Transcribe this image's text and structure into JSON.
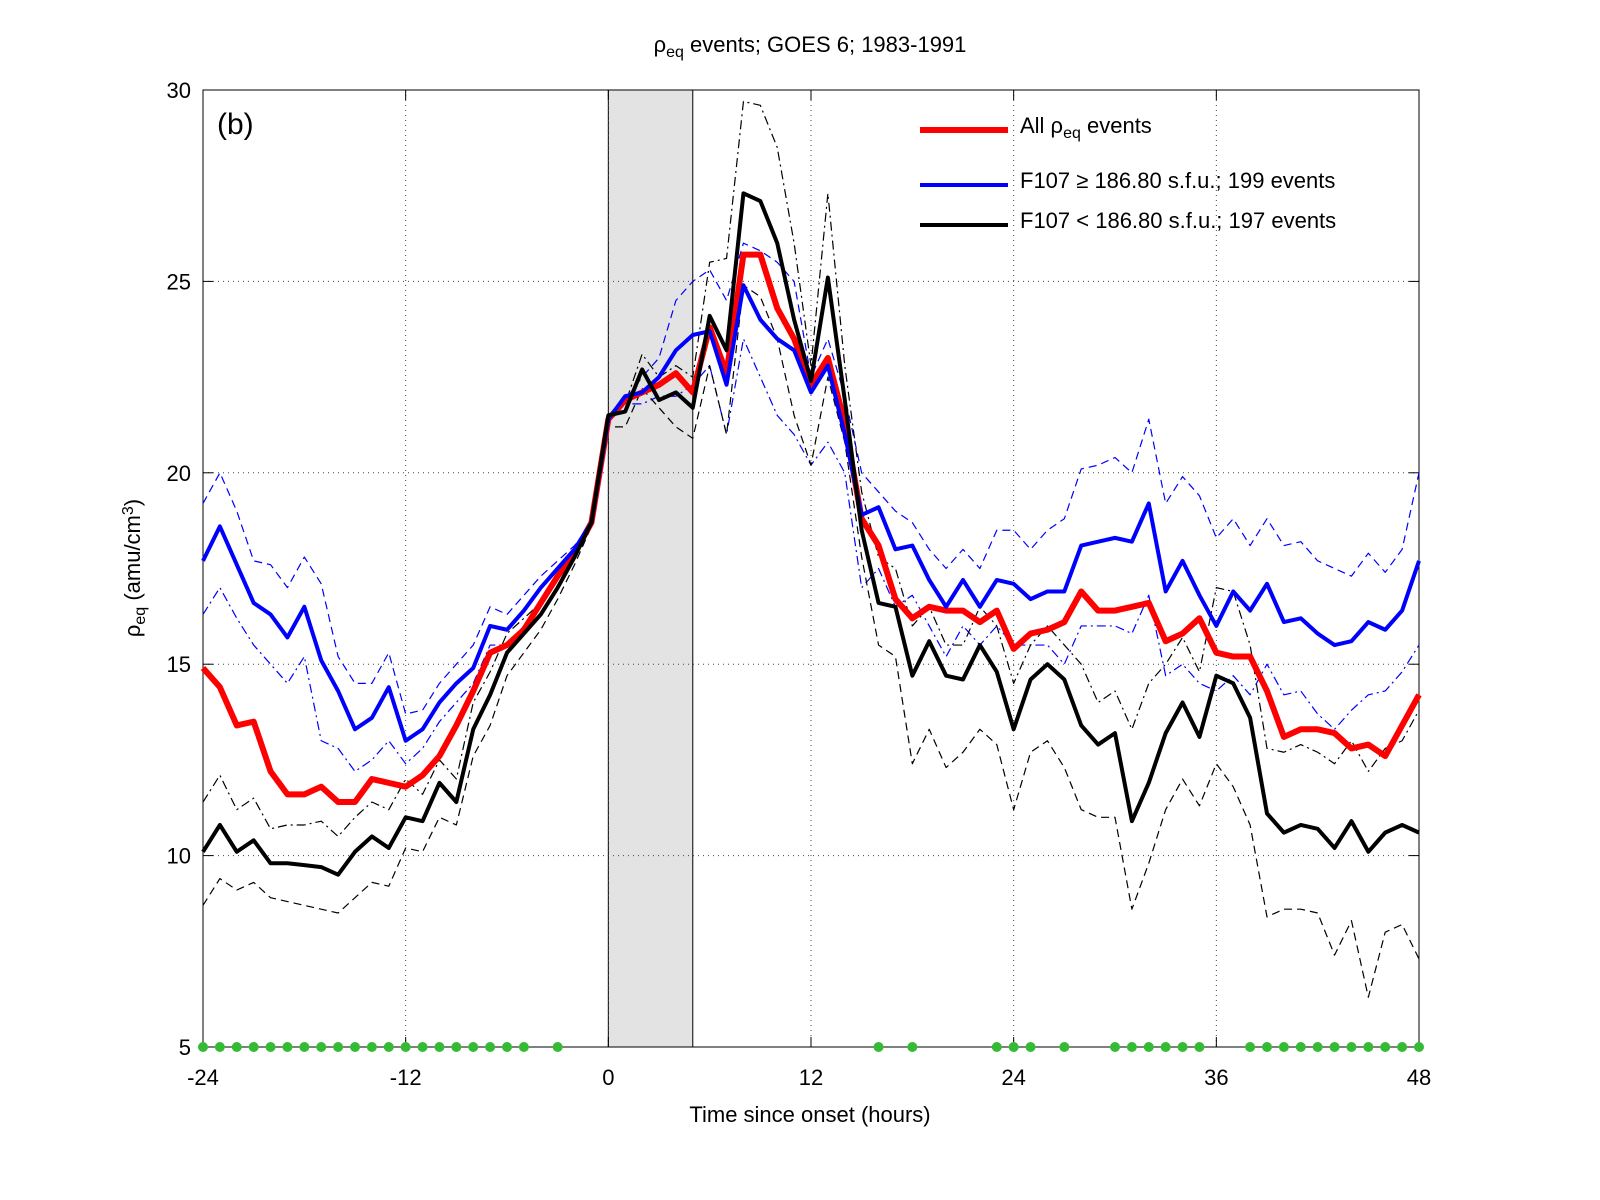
{
  "chart_data": {
    "type": "line",
    "title": [
      "ρ",
      "eq",
      " events; GOES 6; 1983-1991"
    ],
    "panel_label": "(b)",
    "xlabel": "Time since onset (hours)",
    "ylabel": [
      "ρ",
      "eq",
      " (amu/cm",
      "3",
      ")"
    ],
    "xlim": [
      -24,
      48
    ],
    "xticks": [
      -24,
      -12,
      0,
      12,
      24,
      36,
      48
    ],
    "ylim": [
      5,
      30
    ],
    "yticks": [
      5,
      10,
      15,
      20,
      25,
      30
    ],
    "grid": true,
    "legend": "upper right",
    "shade": [
      0,
      5
    ],
    "shade_color": "#e3e3e3",
    "x": [
      -24,
      -23,
      -22,
      -21,
      -20,
      -19,
      -18,
      -17,
      -16,
      -15,
      -14,
      -13,
      -12,
      -11,
      -10,
      -9,
      -8,
      -7,
      -6,
      -5,
      -4,
      -3,
      -2,
      -1,
      0,
      1,
      2,
      3,
      4,
      5,
      6,
      7,
      8,
      9,
      10,
      11,
      12,
      13,
      14,
      15,
      16,
      17,
      18,
      19,
      20,
      21,
      22,
      23,
      24,
      25,
      26,
      27,
      28,
      29,
      30,
      31,
      32,
      33,
      34,
      35,
      36,
      37,
      38,
      39,
      40,
      41,
      42,
      43,
      44,
      45,
      46,
      47,
      48
    ],
    "series": [
      {
        "color": "#0000ff",
        "style": "dashed",
        "values": [
          19.2,
          20.0,
          19.0,
          17.7,
          17.6,
          17.0,
          17.8,
          17.1,
          15.2,
          14.5,
          14.5,
          15.3,
          13.7,
          13.8,
          14.5,
          15.0,
          15.5,
          16.5,
          16.3,
          16.8,
          17.3,
          17.7,
          18.1,
          18.7,
          21.4,
          21.9,
          22.5,
          23.0,
          24.5,
          25.0,
          25.3,
          24.5,
          26.0,
          25.8,
          25.5,
          25.0,
          22.5,
          23.5,
          22.0,
          20.0,
          19.5,
          19.0,
          18.7,
          18.0,
          17.5,
          18.0,
          17.5,
          18.5,
          18.5,
          18.0,
          18.5,
          18.8,
          20.1,
          20.2,
          20.4,
          20.0,
          21.4,
          19.2,
          19.9,
          19.4,
          18.3,
          18.8,
          18.1,
          18.8,
          18.1,
          18.2,
          17.7,
          17.5,
          17.3,
          17.9,
          17.4,
          18.0,
          20.0
        ]
      },
      {
        "color": "#0000ff",
        "style": "dashdot",
        "values": [
          16.3,
          17.0,
          16.2,
          15.5,
          15.0,
          14.5,
          15.2,
          13.0,
          12.8,
          12.2,
          12.5,
          13.0,
          12.4,
          12.8,
          13.5,
          14.0,
          14.5,
          15.5,
          15.5,
          16.0,
          16.7,
          17.3,
          17.9,
          18.6,
          21.3,
          21.8,
          21.8,
          22.0,
          22.0,
          22.3,
          22.8,
          21.0,
          23.5,
          22.5,
          21.5,
          21.0,
          20.2,
          20.8,
          20.0,
          17.0,
          17.5,
          16.5,
          16.8,
          16.0,
          15.2,
          16.0,
          15.5,
          16.0,
          15.5,
          15.5,
          15.5,
          15.0,
          16.0,
          16.0,
          16.0,
          15.8,
          16.8,
          14.7,
          15.0,
          14.5,
          14.3,
          14.7,
          14.2,
          15.0,
          14.2,
          14.3,
          13.7,
          13.3,
          13.8,
          14.2,
          14.3,
          14.8,
          15.5
        ]
      },
      {
        "color": "#000000",
        "style": "dashdot",
        "values": [
          11.4,
          12.1,
          11.2,
          11.5,
          10.7,
          10.8,
          10.8,
          10.9,
          10.5,
          11.0,
          11.4,
          11.2,
          12.0,
          11.6,
          12.5,
          12.0,
          14.0,
          14.8,
          15.8,
          16.2,
          16.6,
          17.2,
          17.9,
          18.7,
          21.4,
          21.8,
          23.1,
          22.5,
          22.8,
          22.5,
          25.5,
          25.6,
          29.7,
          29.6,
          28.5,
          26.0,
          22.8,
          27.3,
          22.8,
          19.5,
          17.8,
          17.5,
          16.0,
          16.5,
          15.5,
          15.5,
          16.5,
          16.0,
          14.5,
          15.5,
          16.0,
          15.5,
          15.0,
          14.0,
          14.3,
          13.3,
          14.5,
          15.0,
          15.7,
          14.8,
          17.0,
          16.9,
          15.5,
          12.8,
          12.7,
          12.9,
          12.7,
          12.4,
          13.0,
          12.2,
          12.8,
          13.0,
          13.8
        ]
      },
      {
        "color": "#000000",
        "style": "dashed",
        "values": [
          8.7,
          9.4,
          9.1,
          9.3,
          8.9,
          8.8,
          8.7,
          8.6,
          8.5,
          8.9,
          9.3,
          9.2,
          10.2,
          10.1,
          11.0,
          10.8,
          12.6,
          13.4,
          14.7,
          15.3,
          15.9,
          16.7,
          17.6,
          18.6,
          21.2,
          21.2,
          22.2,
          21.7,
          21.2,
          20.9,
          22.8,
          21.0,
          24.9,
          24.6,
          23.5,
          21.5,
          20.2,
          22.5,
          20.8,
          17.8,
          15.5,
          15.2,
          12.4,
          13.3,
          12.3,
          12.7,
          13.3,
          12.9,
          11.2,
          12.7,
          13.0,
          12.3,
          11.2,
          11.0,
          11.0,
          8.6,
          9.8,
          11.2,
          12.0,
          11.3,
          12.4,
          11.8,
          10.8,
          8.4,
          8.6,
          8.6,
          8.5,
          7.4,
          8.3,
          6.3,
          8.0,
          8.2,
          7.3
        ]
      },
      {
        "name": [
          "All ρ",
          "eq",
          " events"
        ],
        "color": "#ff0000",
        "style": "solid",
        "values": [
          14.9,
          14.4,
          13.4,
          13.5,
          12.2,
          11.6,
          11.6,
          11.8,
          11.4,
          11.4,
          12.0,
          11.9,
          11.8,
          12.1,
          12.6,
          13.4,
          14.3,
          15.3,
          15.5,
          15.9,
          16.6,
          17.3,
          17.9,
          18.7,
          21.4,
          21.9,
          22.1,
          22.3,
          22.6,
          22.1,
          23.8,
          22.6,
          25.7,
          25.7,
          24.3,
          23.5,
          22.3,
          23.0,
          21.3,
          18.8,
          18.1,
          16.7,
          16.2,
          16.5,
          16.4,
          16.4,
          16.1,
          16.4,
          15.4,
          15.8,
          15.9,
          16.1,
          16.9,
          16.4,
          16.4,
          16.5,
          16.6,
          15.6,
          15.8,
          16.2,
          15.3,
          15.2,
          15.2,
          14.3,
          13.1,
          13.3,
          13.3,
          13.2,
          12.8,
          12.9,
          12.6,
          13.4,
          14.2
        ]
      },
      {
        "name": [
          "F107  ≥ 186.80 s.f.u.; 199 events"
        ],
        "color": "#0000ff",
        "style": "solid",
        "values": [
          17.7,
          18.6,
          17.6,
          16.6,
          16.3,
          15.7,
          16.5,
          15.1,
          14.3,
          13.3,
          13.6,
          14.4,
          13.0,
          13.3,
          14.0,
          14.5,
          14.9,
          16.0,
          15.9,
          16.4,
          17.0,
          17.5,
          18.0,
          18.7,
          21.4,
          22.0,
          22.1,
          22.5,
          23.2,
          23.6,
          23.7,
          22.3,
          24.9,
          24.0,
          23.5,
          23.2,
          22.1,
          22.8,
          21.0,
          18.9,
          19.1,
          18.0,
          18.1,
          17.2,
          16.5,
          17.2,
          16.5,
          17.2,
          17.1,
          16.7,
          16.9,
          16.9,
          18.1,
          18.2,
          18.3,
          18.2,
          19.2,
          16.9,
          17.7,
          16.8,
          16.0,
          16.9,
          16.4,
          17.1,
          16.1,
          16.2,
          15.8,
          15.5,
          15.6,
          16.1,
          15.9,
          16.4,
          17.7
        ]
      },
      {
        "name": [
          "F107 < 186.80 s.f.u.; 197 events"
        ],
        "color": "#000000",
        "style": "solid",
        "values": [
          10.1,
          10.8,
          10.1,
          10.4,
          9.8,
          9.8,
          9.75,
          9.7,
          9.5,
          10.1,
          10.5,
          10.2,
          11.0,
          10.9,
          11.9,
          11.4,
          13.3,
          14.2,
          15.3,
          15.8,
          16.3,
          17.0,
          17.8,
          18.7,
          21.5,
          21.6,
          22.7,
          21.9,
          22.1,
          21.7,
          24.1,
          23.2,
          27.3,
          27.1,
          26.0,
          24.0,
          22.4,
          25.1,
          21.9,
          18.5,
          16.6,
          16.5,
          14.7,
          15.6,
          14.7,
          14.6,
          15.5,
          14.8,
          13.3,
          14.6,
          15.0,
          14.6,
          13.4,
          12.9,
          13.2,
          10.9,
          11.9,
          13.2,
          14.0,
          13.1,
          14.7,
          14.5,
          13.6,
          11.1,
          10.6,
          10.8,
          10.7,
          10.2,
          10.9,
          10.1,
          10.6,
          10.8,
          10.6
        ]
      }
    ],
    "dots": {
      "color": "#33bb33",
      "y": 5,
      "x": [
        -24,
        -23,
        -22,
        -21,
        -20,
        -19,
        -18,
        -17,
        -16,
        -15,
        -14,
        -13,
        -12,
        -11,
        -10,
        -9,
        -8,
        -7,
        -6,
        -5,
        -3,
        16,
        18,
        23,
        24,
        25,
        27,
        30,
        31,
        32,
        33,
        34,
        35,
        38,
        39,
        40,
        41,
        42,
        43,
        44,
        45,
        46,
        47,
        48
      ]
    }
  }
}
